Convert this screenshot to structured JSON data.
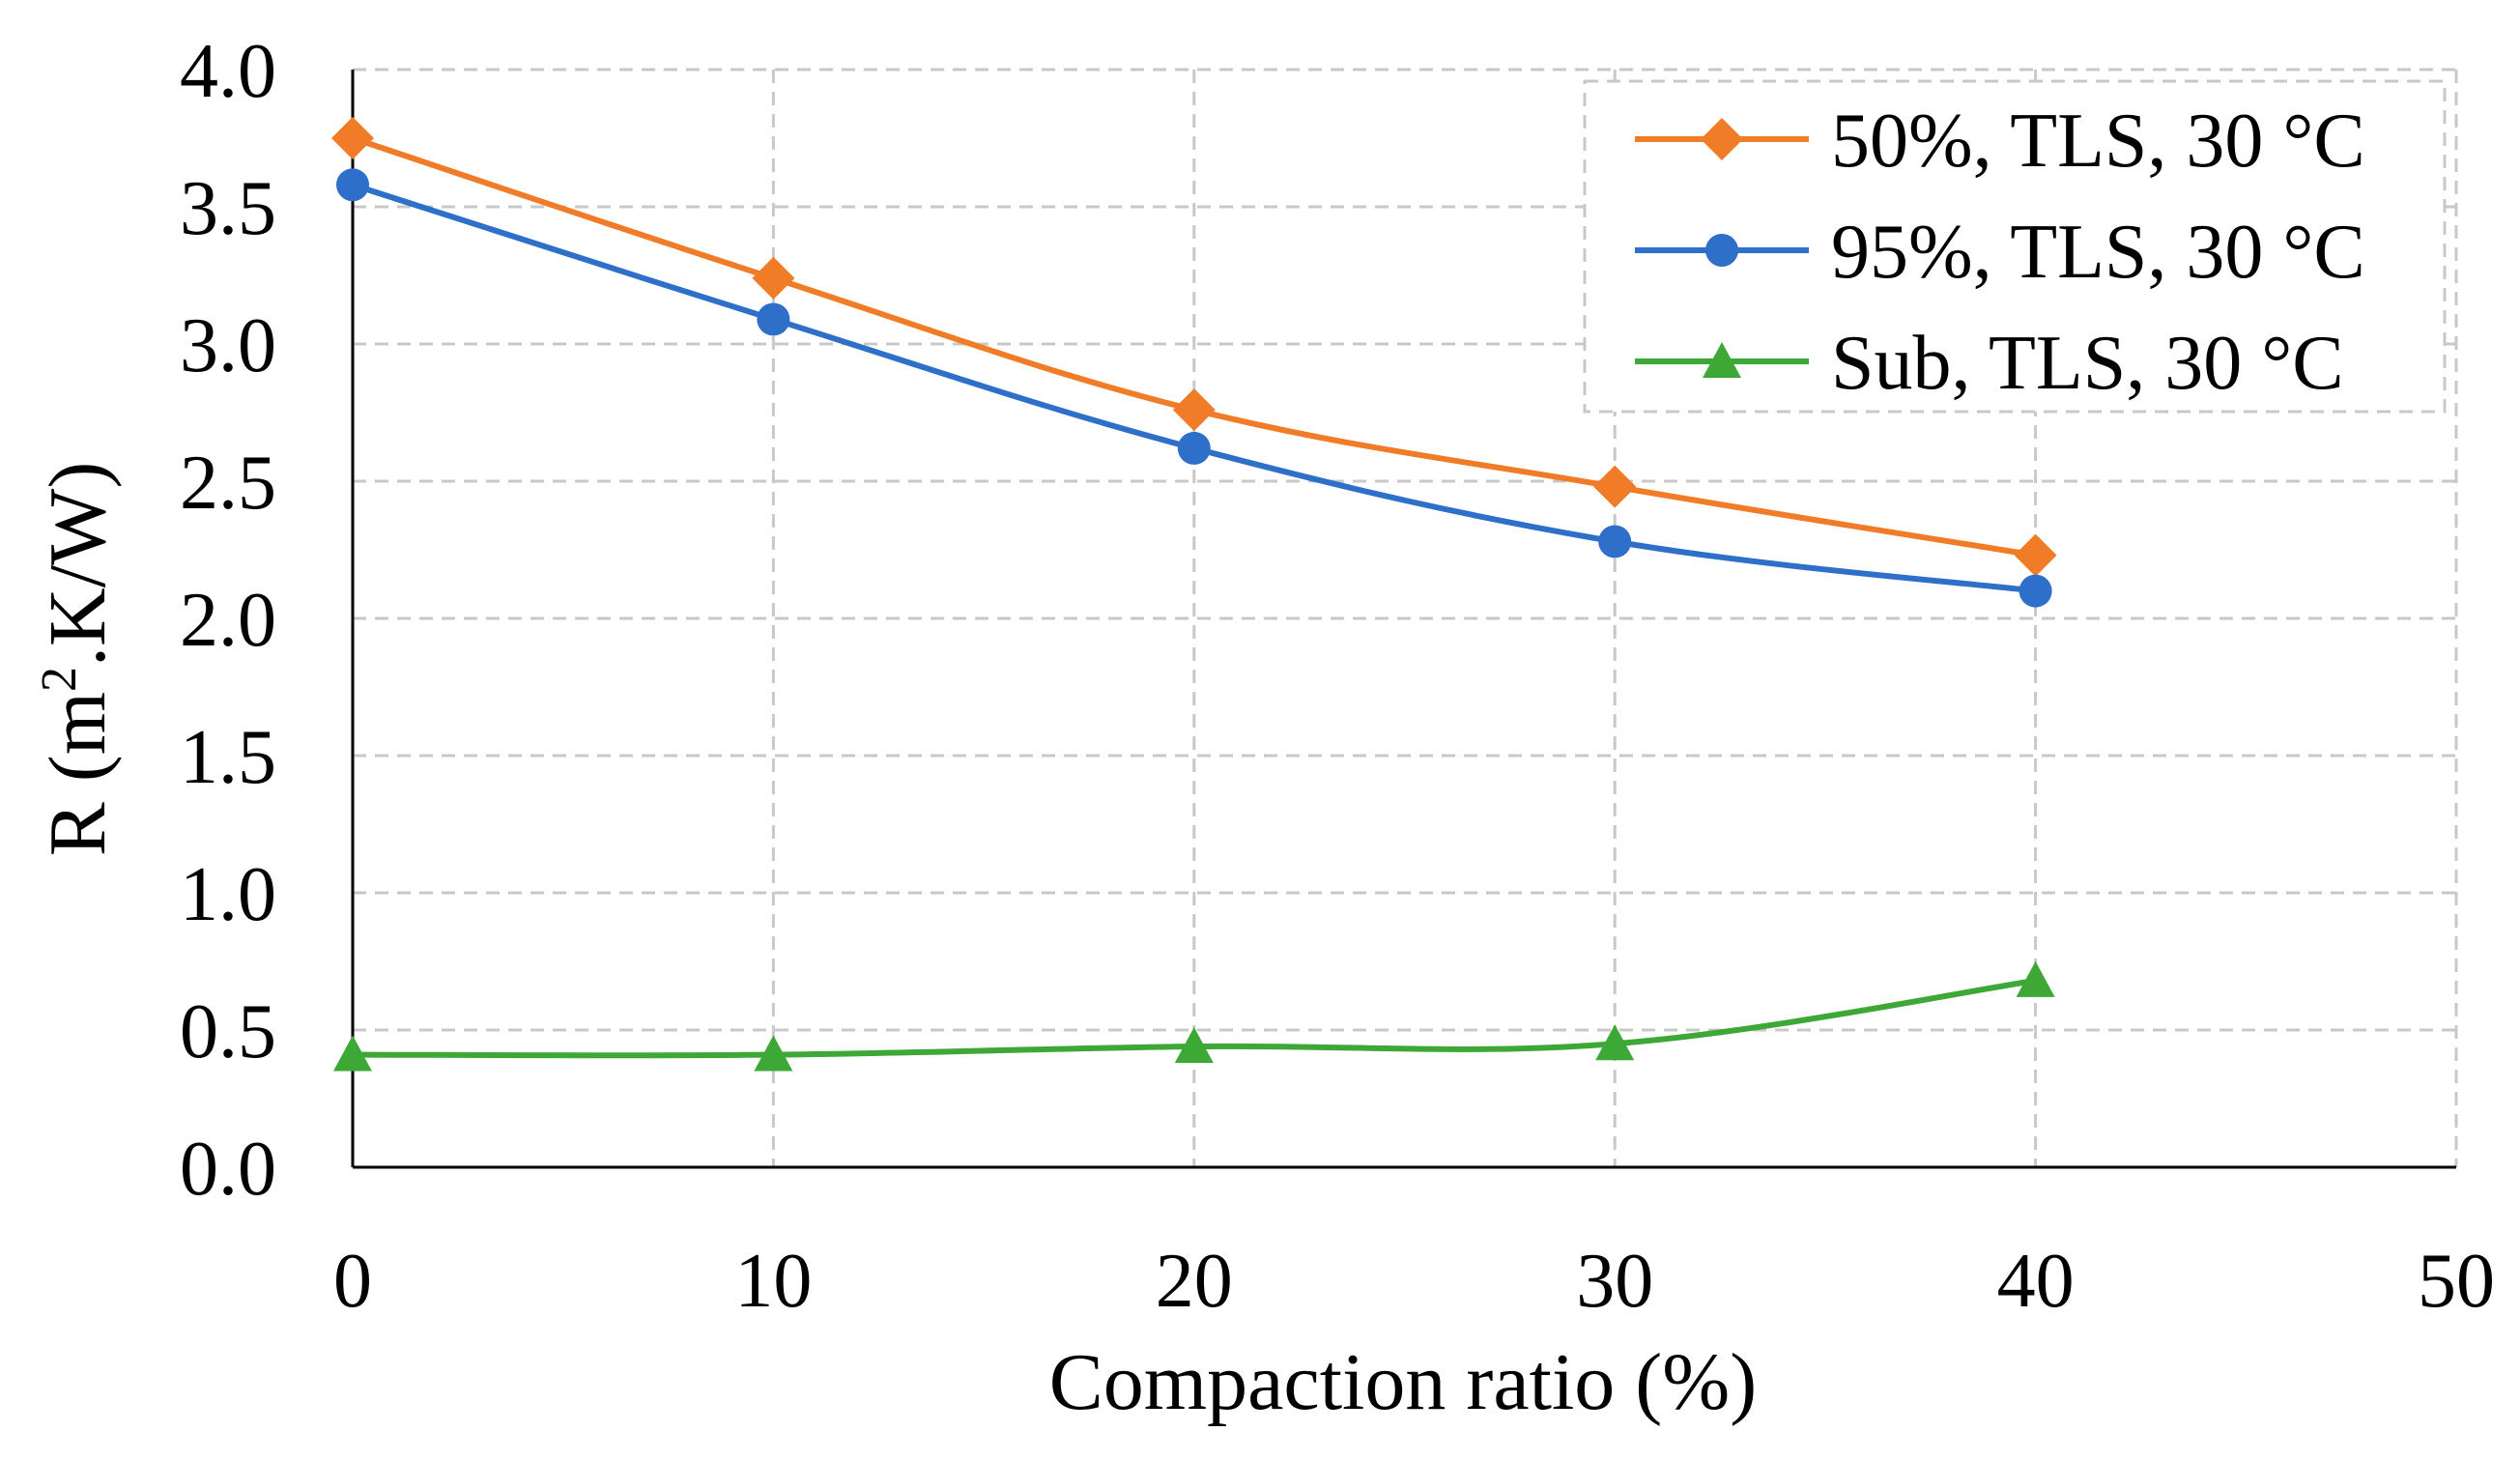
{
  "chart_data": {
    "type": "line",
    "title": "",
    "xlabel": "Compaction ratio (%)",
    "ylabel_main": "R (m",
    "ylabel_sup": "2",
    "ylabel_rest": ".K/W)",
    "xlim": [
      0,
      50
    ],
    "ylim": [
      0.0,
      4.0
    ],
    "x_ticks": [
      "0",
      "10",
      "20",
      "30",
      "40",
      "50"
    ],
    "y_ticks": [
      "0.0",
      "0.5",
      "1.0",
      "1.5",
      "2.0",
      "2.5",
      "3.0",
      "3.5",
      "4.0"
    ],
    "grid": true,
    "legend_position": "top-right",
    "x": [
      0,
      10,
      20,
      30,
      40
    ],
    "series": [
      {
        "name": "50%, TLS, 30 °C",
        "color": "#F07C28",
        "marker": "diamond",
        "values": [
          3.75,
          3.24,
          2.76,
          2.48,
          2.23
        ]
      },
      {
        "name": "95%, TLS, 30 °C",
        "color": "#2E6FC9",
        "marker": "circle",
        "values": [
          3.58,
          3.09,
          2.62,
          2.28,
          2.1
        ]
      },
      {
        "name": "Sub, TLS, 30 °C",
        "color": "#3DA836",
        "marker": "triangle",
        "values": [
          0.41,
          0.41,
          0.44,
          0.45,
          0.68
        ]
      }
    ]
  }
}
